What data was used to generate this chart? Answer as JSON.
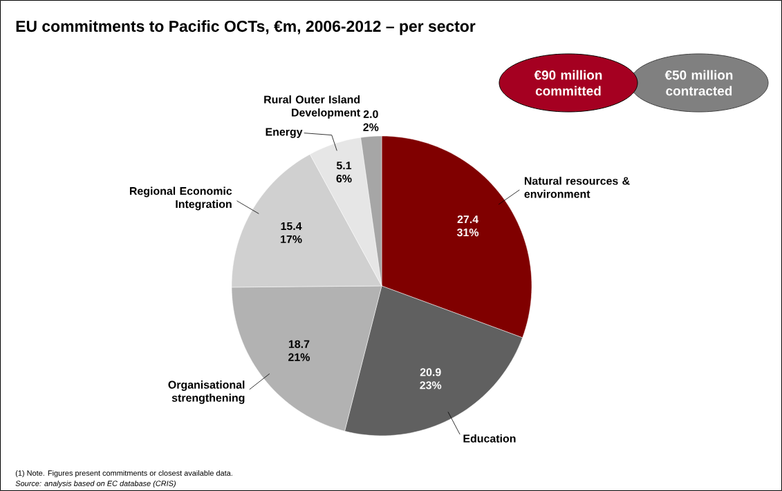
{
  "chart_data": {
    "type": "pie",
    "title": "EU commitments to Pacific OCTs, €m, 2006-2012 – per sector",
    "categories": [
      "Natural resources & environment",
      "Education",
      "Organisational strengthening",
      "Regional Economic Integration",
      "Energy",
      "Rural Outer Island Development"
    ],
    "values": [
      27.4,
      20.9,
      18.7,
      15.4,
      5.1,
      2.0
    ],
    "colors": [
      "#800000",
      "#606060",
      "#b2b2b2",
      "#d0d0d0",
      "#e6e6e6",
      "#a6a6a6"
    ],
    "value_labels": [
      "27.4 31%",
      "20.9 23%",
      "18.7 21%",
      "15.4 17%",
      "5.1 6%",
      "2.0 2%"
    ],
    "annotations": [
      "€90 million committed",
      "€50 million contracted",
      "(1) Note. Figures present commitments or closest available data.",
      "Source: analysis based on EC database (CRIS)"
    ]
  }
}
